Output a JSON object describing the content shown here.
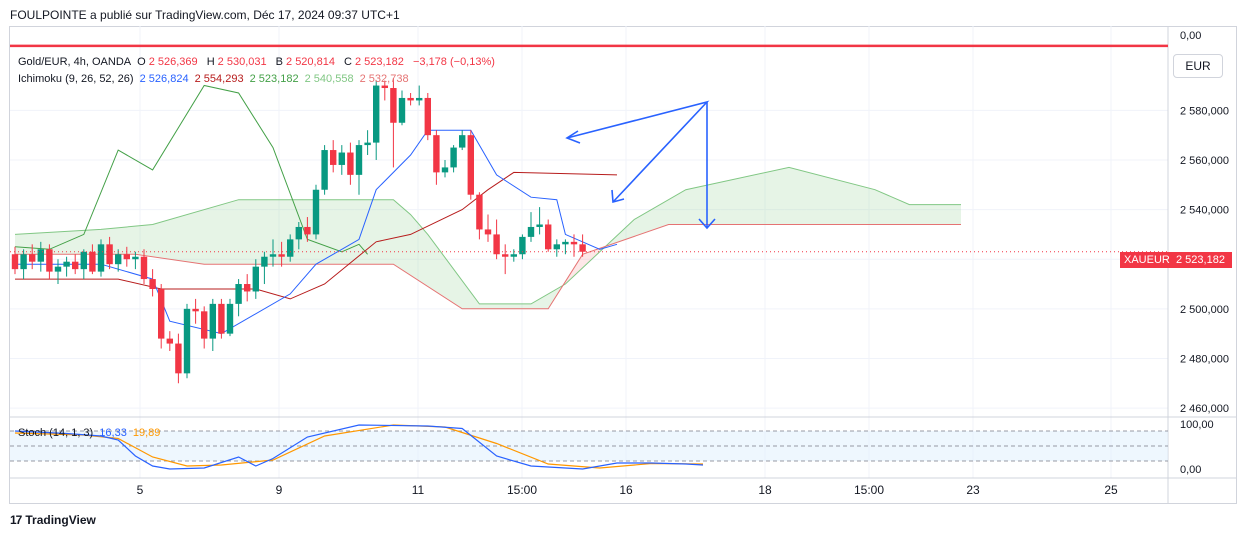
{
  "header": {
    "publisher": "FOULPOINTE a publié sur TradingView.com, Déc 17, 2024 09:37 UTC+1"
  },
  "currency_button": "EUR",
  "legend": {
    "symbol": "Gold/EUR, 4h, OANDA",
    "o_label": "O",
    "o": "2 526,369",
    "h_label": "H",
    "h": "2 530,031",
    "b_label": "B",
    "b": "2 520,814",
    "c_label": "C",
    "c": "2 523,182",
    "change": "−3,178 (−0,13%)",
    "ichimoku_label": "Ichimoku (9, 26, 52, 26)",
    "ich_v1": "2 526,824",
    "ich_v2": "2 554,293",
    "ich_v3": "2 523,182",
    "ich_v4": "2 540,558",
    "ich_v5": "2 532,738",
    "stoch_label": "Stoch (14, 1, 3)",
    "stoch_k": "16,33",
    "stoch_d": "19,89"
  },
  "price_tag": {
    "symbol": "XAUEUR",
    "value": "2 523,182"
  },
  "footer": {
    "brand": "TradingView",
    "logo": "17"
  },
  "colors": {
    "up": "#089981",
    "down": "#f23645",
    "tenkan": "#2962ff",
    "kijun": "#b71c1c",
    "chikou": "#43a047",
    "cloud_bear": "#f7a8a8",
    "cloud_bull": "#a5d6a7",
    "stoch_k": "#2962ff",
    "stoch_d": "#ff9800",
    "hline": "#f23645",
    "arrows": "#2962ff"
  },
  "chart_data": {
    "type": "candlestick",
    "price_axis": {
      "ticks": [
        2460,
        2480,
        2500,
        2520,
        2540,
        2560,
        2580
      ],
      "tick_labels": [
        "2 460,000",
        "2 480,000",
        "2 500,000",
        "2 520,000",
        "2 540,000",
        "2 560,000",
        "2 580,000"
      ],
      "top_label": "0,00",
      "range": [
        2456,
        2614
      ]
    },
    "time_axis": {
      "labels": [
        "5",
        "9",
        "11",
        "15:00",
        "16",
        "18",
        "15:00",
        "23",
        "25"
      ]
    },
    "horizontal_line": {
      "price": 2606
    },
    "candles": [
      [
        2522,
        2525,
        2514,
        2516
      ],
      [
        2516,
        2524,
        2512,
        2522
      ],
      [
        2522,
        2526,
        2516,
        2519
      ],
      [
        2519,
        2527,
        2515,
        2524
      ],
      [
        2524,
        2526,
        2512,
        2515
      ],
      [
        2515,
        2520,
        2510,
        2517
      ],
      [
        2517,
        2521,
        2513,
        2519
      ],
      [
        2519,
        2522,
        2514,
        2516
      ],
      [
        2516,
        2524,
        2512,
        2523
      ],
      [
        2523,
        2526,
        2514,
        2515
      ],
      [
        2515,
        2528,
        2513,
        2526
      ],
      [
        2526,
        2529,
        2516,
        2518
      ],
      [
        2518,
        2524,
        2515,
        2522
      ],
      [
        2522,
        2525,
        2517,
        2520
      ],
      [
        2520,
        2523,
        2516,
        2521
      ],
      [
        2521,
        2524,
        2510,
        2512
      ],
      [
        2512,
        2516,
        2505,
        2508
      ],
      [
        2508,
        2510,
        2484,
        2488
      ],
      [
        2488,
        2491,
        2483,
        2486
      ],
      [
        2486,
        2490,
        2470,
        2474
      ],
      [
        2474,
        2502,
        2472,
        2500
      ],
      [
        2500,
        2504,
        2494,
        2499
      ],
      [
        2499,
        2501,
        2484,
        2488
      ],
      [
        2488,
        2504,
        2483,
        2502
      ],
      [
        2502,
        2504,
        2488,
        2490
      ],
      [
        2490,
        2504,
        2489,
        2502
      ],
      [
        2502,
        2512,
        2497,
        2510
      ],
      [
        2510,
        2514,
        2503,
        2507
      ],
      [
        2507,
        2520,
        2504,
        2517
      ],
      [
        2517,
        2523,
        2510,
        2521
      ],
      [
        2521,
        2528,
        2517,
        2522
      ],
      [
        2522,
        2527,
        2517,
        2521
      ],
      [
        2521,
        2530,
        2519,
        2528
      ],
      [
        2528,
        2535,
        2524,
        2533
      ],
      [
        2533,
        2537,
        2527,
        2530
      ],
      [
        2530,
        2550,
        2528,
        2548
      ],
      [
        2548,
        2566,
        2546,
        2564
      ],
      [
        2564,
        2568,
        2555,
        2558
      ],
      [
        2558,
        2566,
        2554,
        2563
      ],
      [
        2563,
        2567,
        2550,
        2554
      ],
      [
        2554,
        2568,
        2546,
        2566
      ],
      [
        2566,
        2572,
        2562,
        2567
      ],
      [
        2567,
        2592,
        2560,
        2590
      ],
      [
        2590,
        2592,
        2584,
        2589
      ],
      [
        2589,
        2593,
        2557,
        2575
      ],
      [
        2575,
        2588,
        2574,
        2585
      ],
      [
        2585,
        2587,
        2582,
        2584
      ],
      [
        2584,
        2590,
        2582,
        2585
      ],
      [
        2585,
        2587,
        2568,
        2570
      ],
      [
        2570,
        2572,
        2550,
        2555
      ],
      [
        2555,
        2560,
        2553,
        2557
      ],
      [
        2557,
        2566,
        2555,
        2565
      ],
      [
        2565,
        2572,
        2564,
        2570
      ],
      [
        2570,
        2572,
        2544,
        2546
      ],
      [
        2546,
        2547,
        2528,
        2532
      ],
      [
        2532,
        2538,
        2527,
        2530
      ],
      [
        2530,
        2536,
        2520,
        2522
      ],
      [
        2522,
        2526,
        2514,
        2521
      ],
      [
        2521,
        2524,
        2519,
        2522
      ],
      [
        2522,
        2530,
        2520,
        2529
      ],
      [
        2529,
        2539,
        2527,
        2533
      ],
      [
        2533,
        2541,
        2530,
        2534
      ],
      [
        2534,
        2536,
        2523,
        2524
      ],
      [
        2524,
        2528,
        2521,
        2526
      ],
      [
        2526,
        2528,
        2522,
        2527
      ],
      [
        2527,
        2530,
        2521,
        2526
      ],
      [
        2526,
        2530,
        2521,
        2523
      ]
    ],
    "ichimoku": {
      "tenkan": [
        [
          0,
          2518
        ],
        [
          10,
          2518
        ],
        [
          16,
          2512
        ],
        [
          18,
          2495
        ],
        [
          24,
          2490
        ],
        [
          32,
          2506
        ],
        [
          35,
          2518
        ],
        [
          40,
          2528
        ],
        [
          42,
          2548
        ],
        [
          46,
          2562
        ],
        [
          48,
          2572
        ],
        [
          53,
          2572
        ],
        [
          56,
          2554
        ],
        [
          60,
          2545
        ],
        [
          63,
          2544
        ],
        [
          64,
          2530
        ],
        [
          68,
          2524
        ],
        [
          70,
          2526
        ]
      ],
      "kijun": [
        [
          0,
          2512
        ],
        [
          12,
          2512
        ],
        [
          17,
          2508
        ],
        [
          28,
          2508
        ],
        [
          32,
          2504
        ],
        [
          36,
          2510
        ],
        [
          42,
          2527
        ],
        [
          46,
          2530
        ],
        [
          52,
          2540
        ],
        [
          55,
          2548
        ],
        [
          58,
          2555
        ],
        [
          70,
          2554
        ]
      ],
      "chikou": [
        [
          0,
          2525
        ],
        [
          4,
          2524
        ],
        [
          8,
          2530
        ],
        [
          12,
          2564
        ],
        [
          16,
          2556
        ],
        [
          22,
          2590
        ],
        [
          26,
          2587
        ],
        [
          30,
          2565
        ],
        [
          34,
          2528
        ],
        [
          38,
          2523
        ],
        [
          40,
          2526
        ],
        [
          41,
          2522
        ]
      ],
      "span_a": [
        [
          0,
          2530
        ],
        [
          10,
          2532
        ],
        [
          16,
          2534
        ],
        [
          26,
          2544
        ],
        [
          44,
          2544
        ],
        [
          46,
          2538
        ],
        [
          48,
          2530
        ],
        [
          54,
          2502
        ],
        [
          60,
          2502
        ],
        [
          64,
          2510
        ],
        [
          72,
          2536
        ],
        [
          78,
          2548
        ],
        [
          90,
          2557
        ],
        [
          100,
          2548
        ],
        [
          104,
          2542
        ],
        [
          110,
          2542
        ]
      ],
      "span_b": [
        [
          0,
          2522
        ],
        [
          14,
          2522
        ],
        [
          22,
          2518
        ],
        [
          44,
          2518
        ],
        [
          52,
          2500
        ],
        [
          62,
          2500
        ],
        [
          66,
          2522
        ],
        [
          76,
          2534
        ],
        [
          110,
          2534
        ]
      ]
    },
    "stoch": {
      "range": [
        0,
        100
      ],
      "top_label": "100,00",
      "bottom_label": "0,00",
      "upper": 80,
      "lower": 20,
      "k": [
        [
          0,
          80
        ],
        [
          6,
          75
        ],
        [
          10,
          70
        ],
        [
          12,
          62
        ],
        [
          14,
          30
        ],
        [
          16,
          10
        ],
        [
          18,
          4
        ],
        [
          22,
          6
        ],
        [
          26,
          28
        ],
        [
          28,
          10
        ],
        [
          30,
          25
        ],
        [
          34,
          68
        ],
        [
          40,
          92
        ],
        [
          48,
          90
        ],
        [
          52,
          85
        ],
        [
          56,
          30
        ],
        [
          60,
          10
        ],
        [
          66,
          4
        ],
        [
          70,
          16
        ],
        [
          74,
          16
        ],
        [
          78,
          14
        ],
        [
          80,
          12
        ]
      ],
      "d": [
        [
          0,
          76
        ],
        [
          8,
          72
        ],
        [
          12,
          65
        ],
        [
          16,
          28
        ],
        [
          20,
          10
        ],
        [
          24,
          12
        ],
        [
          30,
          22
        ],
        [
          36,
          70
        ],
        [
          44,
          92
        ],
        [
          50,
          88
        ],
        [
          56,
          55
        ],
        [
          62,
          14
        ],
        [
          68,
          6
        ],
        [
          74,
          15
        ],
        [
          80,
          14
        ]
      ]
    }
  }
}
